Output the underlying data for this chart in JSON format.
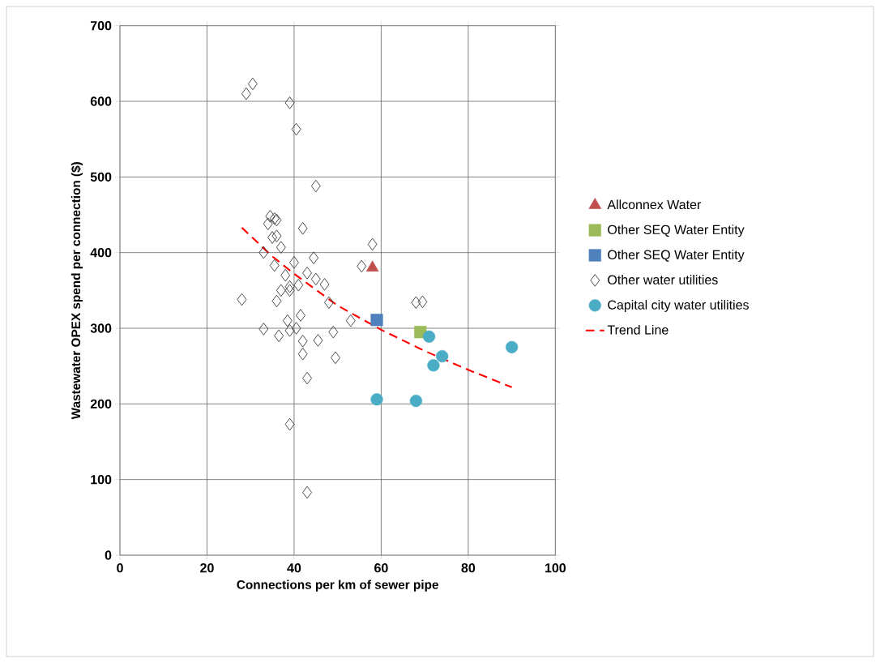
{
  "chart_data": {
    "type": "scatter",
    "xlabel": "Connections per km of sewer pipe",
    "ylabel": "Wastewater OPEX spend per connection ($)",
    "xlim": [
      0,
      100
    ],
    "xticks": [
      0,
      20,
      40,
      60,
      80,
      100
    ],
    "ylim": [
      0,
      700
    ],
    "yticks": [
      0,
      100,
      200,
      300,
      400,
      500,
      600,
      700
    ],
    "grid": true,
    "legend": "right",
    "series": [
      {
        "name": "Allconnex Water",
        "color": "#c0504d",
        "marker": "triangle",
        "x": [
          58
        ],
        "values": [
          380
        ]
      },
      {
        "name": "Other SEQ Water Entity",
        "color": "#9bbb59",
        "marker": "square",
        "x": [
          69
        ],
        "values": [
          295
        ]
      },
      {
        "name": "Other SEQ Water Entity",
        "color": "#4f81bd",
        "marker": "square",
        "x": [
          59
        ],
        "values": [
          311
        ]
      },
      {
        "name": "Other water utilities",
        "color": "#404040",
        "marker": "diamond",
        "x": [
          29,
          30.5,
          39,
          40.5,
          45,
          34.5,
          35.5,
          36,
          34,
          42,
          35,
          36,
          37,
          35.5,
          33,
          40,
          44.5,
          58,
          55.5,
          38,
          43,
          45,
          47,
          41,
          39,
          39,
          37,
          36,
          28,
          48,
          53,
          38.5,
          41.5,
          40.5,
          39,
          33,
          36.5,
          42,
          45.5,
          49,
          42,
          49.5,
          43,
          39,
          43,
          68,
          69.5
        ],
        "values": [
          610,
          623,
          598,
          563,
          488,
          448,
          445,
          443,
          438,
          432,
          420,
          422,
          407,
          383,
          400,
          387,
          393,
          411,
          382,
          370,
          373,
          365,
          358,
          357,
          355,
          350,
          350,
          336,
          338,
          334,
          310,
          310,
          317,
          300,
          297,
          299,
          290,
          283,
          284,
          295,
          266,
          261,
          234,
          173,
          83,
          334,
          335
        ]
      },
      {
        "name": "Capital city water utilities",
        "color": "#4bacc6",
        "marker": "circle",
        "x": [
          71,
          74,
          72,
          59,
          68,
          90
        ],
        "values": [
          289,
          263,
          251,
          206,
          204,
          275
        ]
      },
      {
        "name": "Trend Line",
        "type": "line",
        "color": "#ff0000",
        "marker": "none",
        "line_style": "dashed",
        "x": [
          28,
          35,
          40,
          50,
          60,
          70,
          80,
          90
        ],
        "values": [
          433,
          395,
          372,
          330,
          298,
          270,
          245,
          222
        ]
      }
    ]
  }
}
